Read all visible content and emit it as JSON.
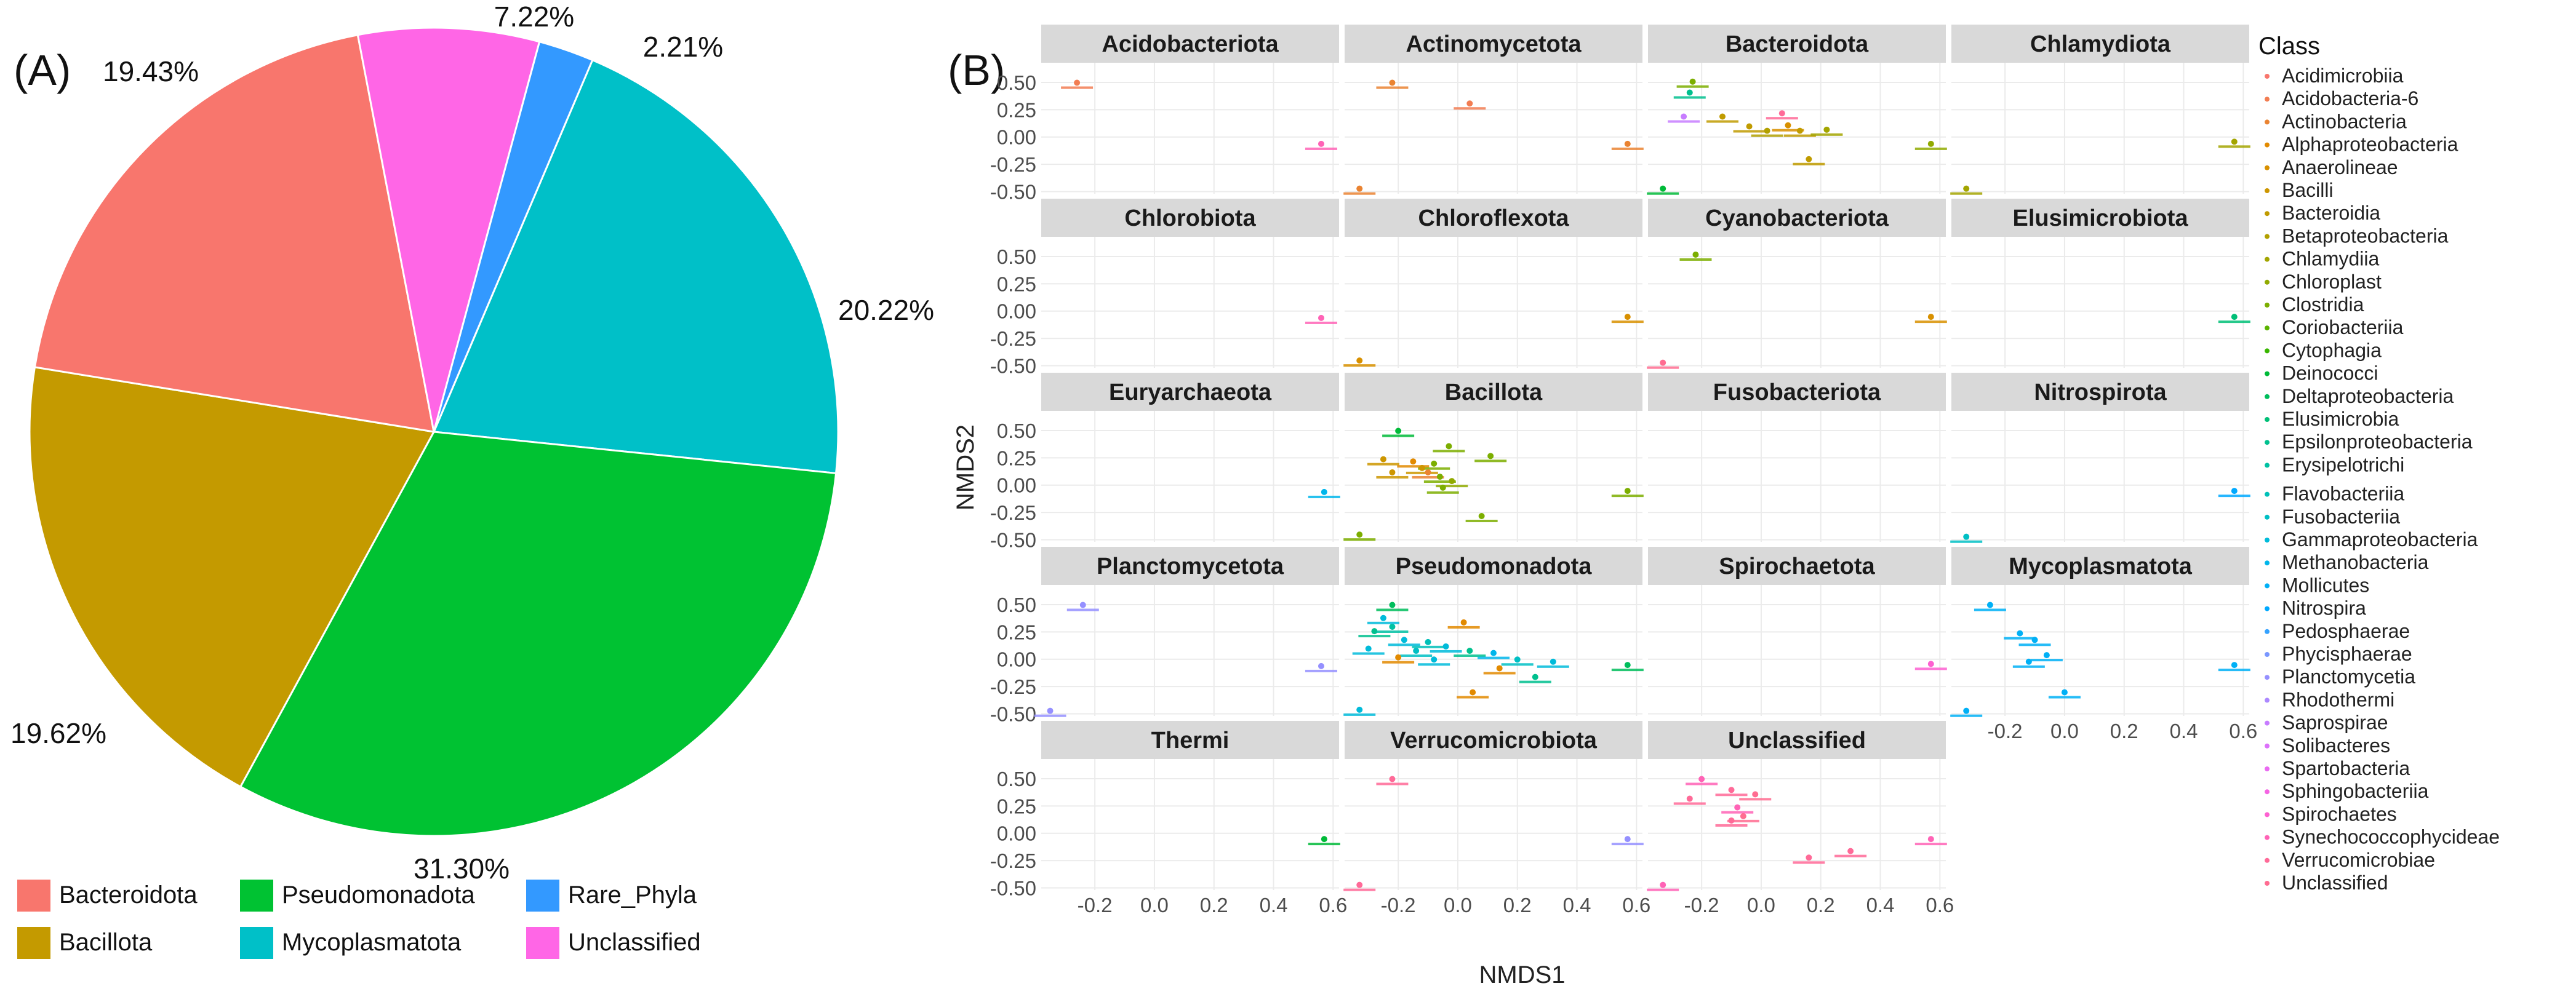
{
  "panelA": {
    "label": "(A)",
    "chart_data": {
      "type": "pie",
      "slices": [
        {
          "name": "Bacteroidota",
          "percent": 19.43,
          "label": "19.43%",
          "color": "#F8766D"
        },
        {
          "name": "Bacillota",
          "percent": 19.62,
          "label": "19.62%",
          "color": "#C49A00"
        },
        {
          "name": "Pseudomonadota",
          "percent": 31.3,
          "label": "31.30%",
          "color": "#00C232"
        },
        {
          "name": "Mycoplasmatota",
          "percent": 20.22,
          "label": "20.22%",
          "color": "#00C0C8"
        },
        {
          "name": "Rare_Phyla",
          "percent": 2.21,
          "label": "2.21%",
          "color": "#3399FF"
        },
        {
          "name": "Unclassified",
          "percent": 7.22,
          "label": "7.22%",
          "color": "#FF66E6"
        }
      ],
      "legend": {
        "placement": "bottom",
        "items": [
          "Bacteroidota",
          "Bacillota",
          "Pseudomonadota",
          "Mycoplasmatota",
          "Rare_Phyla",
          "Unclassified"
        ]
      }
    }
  },
  "panelB": {
    "label": "(B)",
    "chart_data": {
      "type": "scatter",
      "xlabel": "NMDS1",
      "ylabel": "NMDS2",
      "xlim": [
        -0.38,
        0.62
      ],
      "ylim": [
        -0.52,
        0.68
      ],
      "x_ticks": [
        -0.2,
        0.0,
        0.2,
        0.4,
        0.6
      ],
      "x_tick_labels": [
        "-0.2",
        "0.0",
        "0.2",
        "0.4",
        "0.6"
      ],
      "y_ticks": [
        0.5,
        0.25,
        0.0,
        -0.25,
        -0.5
      ],
      "y_tick_labels": [
        "0.50",
        "0.25",
        "0.00",
        "-0.25",
        "-0.50"
      ],
      "grid": true,
      "legend": {
        "title": "Class",
        "placement": "right",
        "items": [
          {
            "name": "Acidimicrobiia",
            "color": "#F8766D"
          },
          {
            "name": "Acidobacteria-6",
            "color": "#F27D52"
          },
          {
            "name": "Actinobacteria",
            "color": "#EA8331"
          },
          {
            "name": "Alphaproteobacteria",
            "color": "#E28A00"
          },
          {
            "name": "Anaerolineae",
            "color": "#D89000"
          },
          {
            "name": "Bacilli",
            "color": "#CD9600"
          },
          {
            "name": "Bacteroidia",
            "color": "#C09B00"
          },
          {
            "name": "Betaproteobacteria",
            "color": "#B2A000"
          },
          {
            "name": "Chlamydiia",
            "color": "#A3A500"
          },
          {
            "name": "Chloroplast",
            "color": "#91AA00"
          },
          {
            "name": "Clostridia",
            "color": "#7CAE00"
          },
          {
            "name": "Coriobacteriia",
            "color": "#5BB300"
          },
          {
            "name": "Cytophagia",
            "color": "#39B600"
          },
          {
            "name": "Deinococci",
            "color": "#00BA38"
          },
          {
            "name": "Deltaproteobacteria",
            "color": "#00BD5C"
          },
          {
            "name": "Elusimicrobia",
            "color": "#00BF77"
          },
          {
            "name": "Epsilonproteobacteria",
            "color": "#00C08E"
          },
          {
            "name": "Erysipelotrichi",
            "color": "#00C1A3"
          },
          {
            "name": "Flavobacteriia",
            "color": "#00C0B8"
          },
          {
            "name": "Fusobacteriia",
            "color": "#00BFC4"
          },
          {
            "name": "Gammaproteobacteria",
            "color": "#00BBDA"
          },
          {
            "name": "Methanobacteria",
            "color": "#00B6EB"
          },
          {
            "name": "Mollicutes",
            "color": "#00B0F6"
          },
          {
            "name": "Nitrospira",
            "color": "#00A9FF"
          },
          {
            "name": "Pedosphaerae",
            "color": "#35A2FF"
          },
          {
            "name": "Phycisphaerae",
            "color": "#7997FF"
          },
          {
            "name": "Planctomycetia",
            "color": "#9590FF"
          },
          {
            "name": "Rhodothermi",
            "color": "#AC88FF"
          },
          {
            "name": "Saprospirae",
            "color": "#C77CFF"
          },
          {
            "name": "Solibacteres",
            "color": "#DC71FA"
          },
          {
            "name": "Spartobacteria",
            "color": "#EA6AF1"
          },
          {
            "name": "Sphingobacteriia",
            "color": "#F564E3"
          },
          {
            "name": "Spirochaetes",
            "color": "#FD61D1"
          },
          {
            "name": "Synechococcophycideae",
            "color": "#FF63B6"
          },
          {
            "name": "Verrucomicrobiae",
            "color": "#FF6A98"
          },
          {
            "name": "Unclassified",
            "color": "#FF6C91"
          }
        ]
      },
      "facets": [
        {
          "title": "Acidobacteriota",
          "points": [
            {
              "x": -0.26,
              "y": 0.48,
              "color": "#F27D52"
            },
            {
              "x": 0.56,
              "y": -0.08,
              "color": "#FF63B6"
            }
          ]
        },
        {
          "title": "Actinomycetota",
          "points": [
            {
              "x": -0.22,
              "y": 0.48,
              "color": "#EA8331"
            },
            {
              "x": 0.04,
              "y": 0.29,
              "color": "#F27D52"
            },
            {
              "x": 0.57,
              "y": -0.08,
              "color": "#EA8331"
            },
            {
              "x": -0.33,
              "y": -0.49,
              "color": "#EA8331"
            }
          ]
        },
        {
          "title": "Bacteroidota",
          "points": [
            {
              "x": -0.23,
              "y": 0.49,
              "color": "#7CAE00"
            },
            {
              "x": -0.24,
              "y": 0.39,
              "color": "#00C08E"
            },
            {
              "x": -0.26,
              "y": 0.17,
              "color": "#C77CFF"
            },
            {
              "x": -0.13,
              "y": 0.17,
              "color": "#C09B00"
            },
            {
              "x": -0.04,
              "y": 0.08,
              "color": "#C09B00"
            },
            {
              "x": 0.02,
              "y": 0.04,
              "color": "#B2A000"
            },
            {
              "x": 0.09,
              "y": 0.09,
              "color": "#D89000"
            },
            {
              "x": 0.13,
              "y": 0.04,
              "color": "#C09B00"
            },
            {
              "x": 0.22,
              "y": 0.05,
              "color": "#A3A500"
            },
            {
              "x": 0.16,
              "y": -0.22,
              "color": "#C09B00"
            },
            {
              "x": 0.07,
              "y": 0.2,
              "color": "#FF6A98"
            },
            {
              "x": 0.57,
              "y": -0.08,
              "color": "#91AA00"
            },
            {
              "x": -0.33,
              "y": -0.49,
              "color": "#00BA38"
            }
          ]
        },
        {
          "title": "Chlamydiota",
          "points": [
            {
              "x": 0.57,
              "y": -0.06,
              "color": "#A3A500"
            },
            {
              "x": -0.33,
              "y": -0.49,
              "color": "#A3A500"
            }
          ]
        },
        {
          "title": "Chlorobiota",
          "points": [
            {
              "x": 0.56,
              "y": -0.08,
              "color": "#FF63B6"
            }
          ]
        },
        {
          "title": "Chloroflexota",
          "points": [
            {
              "x": 0.57,
              "y": -0.07,
              "color": "#D89000"
            },
            {
              "x": -0.33,
              "y": -0.47,
              "color": "#D89000"
            }
          ]
        },
        {
          "title": "Cyanobacteriota",
          "points": [
            {
              "x": -0.22,
              "y": 0.5,
              "color": "#7CAE00"
            },
            {
              "x": 0.57,
              "y": -0.07,
              "color": "#D89000"
            },
            {
              "x": -0.33,
              "y": -0.49,
              "color": "#FF6C91"
            }
          ]
        },
        {
          "title": "Elusimicrobiota",
          "points": [
            {
              "x": 0.57,
              "y": -0.07,
              "color": "#00BF77"
            }
          ]
        },
        {
          "title": "Euryarchaeota",
          "points": [
            {
              "x": 0.57,
              "y": -0.08,
              "color": "#00B6EB"
            }
          ]
        },
        {
          "title": "Bacillota",
          "points": [
            {
              "x": -0.2,
              "y": 0.48,
              "color": "#00BA38"
            },
            {
              "x": -0.03,
              "y": 0.34,
              "color": "#7CAE00"
            },
            {
              "x": 0.11,
              "y": 0.25,
              "color": "#7CAE00"
            },
            {
              "x": -0.25,
              "y": 0.22,
              "color": "#CD9600"
            },
            {
              "x": -0.15,
              "y": 0.2,
              "color": "#E28A00"
            },
            {
              "x": -0.08,
              "y": 0.18,
              "color": "#7CAE00"
            },
            {
              "x": -0.12,
              "y": 0.14,
              "color": "#CD9600"
            },
            {
              "x": -0.1,
              "y": 0.1,
              "color": "#EA8331"
            },
            {
              "x": -0.06,
              "y": 0.06,
              "color": "#7CAE00"
            },
            {
              "x": -0.22,
              "y": 0.1,
              "color": "#CD9600"
            },
            {
              "x": -0.02,
              "y": 0.02,
              "color": "#91AA00"
            },
            {
              "x": -0.05,
              "y": -0.04,
              "color": "#7CAE00"
            },
            {
              "x": 0.08,
              "y": -0.3,
              "color": "#7CAE00"
            },
            {
              "x": 0.57,
              "y": -0.07,
              "color": "#7CAE00"
            },
            {
              "x": -0.33,
              "y": -0.47,
              "color": "#7CAE00"
            }
          ]
        },
        {
          "title": "Fusobacteriota",
          "points": []
        },
        {
          "title": "Nitrospirota",
          "points": [
            {
              "x": 0.57,
              "y": -0.07,
              "color": "#00A9FF"
            },
            {
              "x": -0.33,
              "y": -0.49,
              "color": "#00BFC4"
            }
          ]
        },
        {
          "title": "Planctomycetota",
          "points": [
            {
              "x": -0.24,
              "y": 0.48,
              "color": "#9590FF"
            },
            {
              "x": 0.56,
              "y": -0.08,
              "color": "#9590FF"
            },
            {
              "x": -0.35,
              "y": -0.49,
              "color": "#9590FF"
            }
          ]
        },
        {
          "title": "Pseudomonadota",
          "points": [
            {
              "x": -0.22,
              "y": 0.48,
              "color": "#00BD5C"
            },
            {
              "x": -0.25,
              "y": 0.36,
              "color": "#00BBDA"
            },
            {
              "x": -0.28,
              "y": 0.24,
              "color": "#00C08E"
            },
            {
              "x": -0.22,
              "y": 0.28,
              "color": "#00C1A3"
            },
            {
              "x": 0.02,
              "y": 0.32,
              "color": "#E28A00"
            },
            {
              "x": -0.18,
              "y": 0.16,
              "color": "#00BBDA"
            },
            {
              "x": -0.1,
              "y": 0.14,
              "color": "#00C0B8"
            },
            {
              "x": -0.3,
              "y": 0.08,
              "color": "#00BBDA"
            },
            {
              "x": -0.14,
              "y": 0.06,
              "color": "#00BFC4"
            },
            {
              "x": -0.04,
              "y": 0.1,
              "color": "#00BBDA"
            },
            {
              "x": 0.04,
              "y": 0.06,
              "color": "#00C08E"
            },
            {
              "x": -0.2,
              "y": 0.0,
              "color": "#E28A00"
            },
            {
              "x": -0.08,
              "y": -0.02,
              "color": "#00BBDA"
            },
            {
              "x": 0.12,
              "y": 0.04,
              "color": "#00B6EB"
            },
            {
              "x": 0.2,
              "y": -0.02,
              "color": "#00BFC4"
            },
            {
              "x": 0.32,
              "y": -0.04,
              "color": "#00BBDA"
            },
            {
              "x": 0.14,
              "y": -0.1,
              "color": "#E28A00"
            },
            {
              "x": 0.26,
              "y": -0.18,
              "color": "#00C08E"
            },
            {
              "x": 0.05,
              "y": -0.32,
              "color": "#E28A00"
            },
            {
              "x": 0.57,
              "y": -0.07,
              "color": "#00BD5C"
            },
            {
              "x": -0.33,
              "y": -0.48,
              "color": "#00BBDA"
            }
          ]
        },
        {
          "title": "Spirochaetota",
          "points": [
            {
              "x": 0.57,
              "y": -0.06,
              "color": "#FD61D1"
            }
          ]
        },
        {
          "title": "Mycoplasmatota",
          "points": [
            {
              "x": -0.25,
              "y": 0.48,
              "color": "#00B0F6"
            },
            {
              "x": -0.15,
              "y": 0.22,
              "color": "#00B0F6"
            },
            {
              "x": -0.1,
              "y": 0.16,
              "color": "#00B0F6"
            },
            {
              "x": -0.06,
              "y": 0.02,
              "color": "#00B0F6"
            },
            {
              "x": -0.12,
              "y": -0.04,
              "color": "#00B0F6"
            },
            {
              "x": 0.0,
              "y": -0.32,
              "color": "#00B0F6"
            },
            {
              "x": 0.57,
              "y": -0.07,
              "color": "#00B0F6"
            },
            {
              "x": -0.33,
              "y": -0.49,
              "color": "#00B0F6"
            }
          ]
        },
        {
          "title": "Thermi",
          "points": [
            {
              "x": 0.57,
              "y": -0.07,
              "color": "#00BA38"
            }
          ]
        },
        {
          "title": "Verrucomicrobiota",
          "points": [
            {
              "x": -0.22,
              "y": 0.48,
              "color": "#FF6A98"
            },
            {
              "x": 0.57,
              "y": -0.07,
              "color": "#9590FF"
            },
            {
              "x": -0.33,
              "y": -0.49,
              "color": "#FF6A98"
            }
          ]
        },
        {
          "title": "Unclassified",
          "points": [
            {
              "x": -0.2,
              "y": 0.48,
              "color": "#FF63B6"
            },
            {
              "x": -0.1,
              "y": 0.38,
              "color": "#FF6A98"
            },
            {
              "x": -0.02,
              "y": 0.34,
              "color": "#FF6C91"
            },
            {
              "x": -0.24,
              "y": 0.3,
              "color": "#FF6A98"
            },
            {
              "x": -0.08,
              "y": 0.22,
              "color": "#FF63B6"
            },
            {
              "x": -0.06,
              "y": 0.14,
              "color": "#FF6C91"
            },
            {
              "x": -0.1,
              "y": 0.1,
              "color": "#FF6A98"
            },
            {
              "x": 0.3,
              "y": -0.18,
              "color": "#FF6A98"
            },
            {
              "x": 0.16,
              "y": -0.24,
              "color": "#FF6A98"
            },
            {
              "x": 0.57,
              "y": -0.07,
              "color": "#FF63B6"
            },
            {
              "x": -0.33,
              "y": -0.49,
              "color": "#FF63B6"
            }
          ]
        }
      ]
    }
  }
}
